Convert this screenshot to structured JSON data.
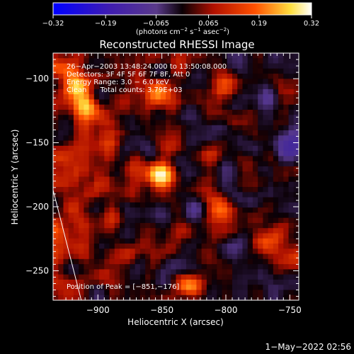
{
  "chart_data": {
    "type": "heatmap",
    "title": "Reconstructed RHESSI Image",
    "xlabel": "Heliocentric X (arcsec)",
    "ylabel": "Heliocentric Y (arcsec)",
    "xlim": [
      -935,
      -743
    ],
    "ylim": [
      -273,
      -80
    ],
    "x_ticks": [
      -900,
      -850,
      -800,
      -750
    ],
    "y_ticks": [
      -250,
      -200,
      -150,
      -100
    ],
    "x_tick_labels": [
      "−900",
      "−850",
      "−800",
      "−750"
    ],
    "y_tick_labels": [
      "−250",
      "−200",
      "−150",
      "−100"
    ],
    "colorbar": {
      "range": [
        -0.32,
        0.32
      ],
      "ticks": [
        -0.32,
        -0.19,
        -0.065,
        0.065,
        0.19,
        0.32
      ],
      "tick_labels": [
        "−0.32",
        "−0.19",
        "−0.065",
        "0.065",
        "0.19",
        "0.32"
      ],
      "unit_label": "(photons cm",
      "unit_parts": [
        "(photons cm",
        "−2",
        " s",
        "−1",
        " asec",
        "−2",
        ")"
      ]
    },
    "annotations": [
      "26−Apr−2003 13:48:24.000 to 13:50:08.000",
      "Detectors: 3F 4F 5F 6F 7F 8F, Att 0",
      "Energy Range: 3.0 − 6.0 keV",
      "Clean      Total counts: 3.79E+03"
    ],
    "peak_label": "Position of Peak = [−851,−176]",
    "peak": [
      -851,
      -176
    ],
    "bright_sources": [
      {
        "x": -851,
        "y": -176,
        "intensity": 0.32
      },
      {
        "x": -910,
        "y": -120,
        "intensity": 0.2
      },
      {
        "x": -918,
        "y": -105,
        "intensity": 0.16
      },
      {
        "x": -828,
        "y": -262,
        "intensity": 0.22
      },
      {
        "x": -855,
        "y": -110,
        "intensity": 0.12
      },
      {
        "x": -890,
        "y": -155,
        "intensity": 0.1
      },
      {
        "x": -805,
        "y": -205,
        "intensity": 0.12
      },
      {
        "x": -770,
        "y": -230,
        "intensity": 0.1
      },
      {
        "x": -880,
        "y": -240,
        "intensity": 0.1
      },
      {
        "x": -800,
        "y": -110,
        "intensity": 0.08
      }
    ],
    "limb_line": [
      [
        -935,
        -187
      ],
      [
        -913,
        -273
      ]
    ]
  },
  "footer_date": "1−May−2022 02:56",
  "colors": {
    "background": "#000000",
    "text": "#ffffff",
    "colormap": [
      "#0000ff",
      "#2a1890",
      "#40307a",
      "#100008",
      "#a01000",
      "#ff4000",
      "#ffff60",
      "#ffffff"
    ]
  }
}
